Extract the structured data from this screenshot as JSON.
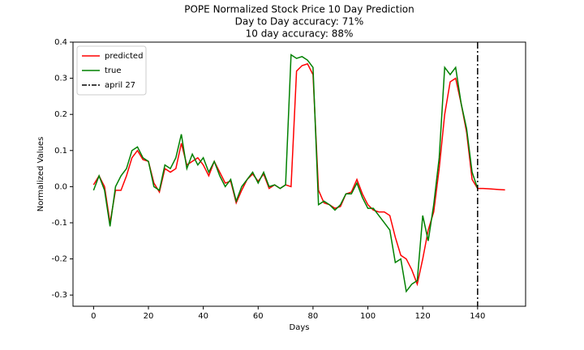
{
  "chart_data": {
    "type": "line",
    "title": "POPE Normalized Stock Price 10 Day Prediction",
    "subtitle": [
      "Day to Day accuracy: 71%",
      "10 day accuracy: 88%"
    ],
    "x_label": "Days",
    "y_label": "Normalized Values",
    "x": [
      0,
      2,
      4,
      6,
      8,
      10,
      12,
      14,
      16,
      18,
      20,
      22,
      24,
      26,
      28,
      30,
      32,
      34,
      36,
      38,
      40,
      42,
      44,
      46,
      48,
      50,
      52,
      54,
      56,
      58,
      60,
      62,
      64,
      66,
      68,
      70,
      72,
      74,
      76,
      78,
      80,
      82,
      84,
      86,
      88,
      90,
      92,
      94,
      96,
      98,
      100,
      102,
      104,
      106,
      108,
      110,
      112,
      114,
      116,
      118,
      120,
      122,
      124,
      126,
      128,
      130,
      132,
      134,
      136,
      138,
      140,
      142,
      144,
      146,
      148,
      150
    ],
    "series": [
      {
        "name": "predicted",
        "color": "#ff0000",
        "values": [
          0.005,
          0.03,
          0.0,
          -0.1,
          -0.01,
          -0.01,
          0.03,
          0.08,
          0.1,
          0.075,
          0.07,
          0.01,
          -0.015,
          0.05,
          0.04,
          0.05,
          0.12,
          0.06,
          0.07,
          0.08,
          0.06,
          0.03,
          0.07,
          0.04,
          0.01,
          0.015,
          -0.045,
          -0.01,
          0.02,
          0.035,
          0.015,
          0.035,
          -0.005,
          0.005,
          -0.005,
          0.005,
          0.0,
          0.32,
          0.335,
          0.34,
          0.31,
          -0.01,
          -0.045,
          -0.05,
          -0.06,
          -0.055,
          -0.02,
          -0.015,
          0.02,
          -0.02,
          -0.05,
          -0.065,
          -0.07,
          -0.07,
          -0.08,
          -0.14,
          -0.19,
          -0.2,
          -0.23,
          -0.27,
          -0.2,
          -0.12,
          -0.07,
          0.05,
          0.2,
          0.29,
          0.3,
          0.23,
          0.15,
          0.02,
          -0.005,
          -0.005,
          -0.006,
          -0.007,
          -0.008,
          -0.009
        ]
      },
      {
        "name": "true",
        "color": "#008000",
        "values": [
          -0.01,
          0.03,
          -0.01,
          -0.11,
          0.0,
          0.03,
          0.05,
          0.1,
          0.11,
          0.08,
          0.07,
          0.0,
          -0.01,
          0.06,
          0.05,
          0.08,
          0.145,
          0.05,
          0.09,
          0.06,
          0.08,
          0.04,
          0.07,
          0.03,
          0.0,
          0.02,
          -0.04,
          0.0,
          0.02,
          0.04,
          0.01,
          0.04,
          0.0,
          0.005,
          -0.005,
          0.005,
          0.365,
          0.355,
          0.36,
          0.35,
          0.33,
          -0.05,
          -0.04,
          -0.05,
          -0.065,
          -0.05,
          -0.02,
          -0.02,
          0.01,
          -0.03,
          -0.06,
          -0.06,
          -0.08,
          -0.1,
          -0.12,
          -0.21,
          -0.2,
          -0.29,
          -0.27,
          -0.26,
          -0.08,
          -0.15,
          -0.05,
          0.08,
          0.33,
          0.31,
          0.33,
          0.23,
          0.16,
          0.04,
          -0.005,
          null,
          null,
          null,
          null,
          null
        ]
      }
    ],
    "vlines": [
      {
        "x": 140,
        "label": "april 27",
        "color": "#000000"
      }
    ],
    "xlim": [
      -7.5,
      157.5
    ],
    "xticks": [
      0,
      20,
      40,
      60,
      80,
      100,
      120,
      140
    ],
    "ylim": [
      -0.331,
      0.4
    ],
    "yticks": [
      -0.3,
      -0.2,
      -0.1,
      {
        "value": 0,
        "label": "0.0"
      },
      0.1,
      0.2,
      0.3,
      0.4
    ],
    "grid": false,
    "legend": "upper left"
  }
}
